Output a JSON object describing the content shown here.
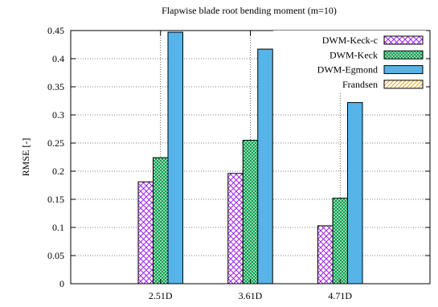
{
  "chart_data": {
    "type": "bar",
    "title": "Flapwise blade root bending moment (m=10)",
    "xlabel": "",
    "ylabel": "RMSE [-]",
    "ylim": [
      0,
      0.45
    ],
    "yticks": [
      0,
      0.05,
      0.1,
      0.15,
      0.2,
      0.25,
      0.3,
      0.35,
      0.4,
      0.45
    ],
    "ytick_labels": [
      "0",
      "0.05",
      "0.1",
      "0.15",
      "0.2",
      "0.25",
      "0.3",
      "0.35",
      "0.4",
      "0.45"
    ],
    "categories": [
      "2.51D",
      "3.61D",
      "4.71D"
    ],
    "grid": "dotted",
    "legend_position": "top-right",
    "series": [
      {
        "name": "DWM-Keck-c",
        "values": [
          0.181,
          0.196,
          0.103
        ],
        "color": "#a020f0",
        "pattern": "crosshatch"
      },
      {
        "name": "DWM-Keck",
        "values": [
          0.224,
          0.255,
          0.152
        ],
        "color": "#009e4a",
        "pattern": "dense-crosshatch"
      },
      {
        "name": "DWM-Egmond",
        "values": [
          0.447,
          0.417,
          0.322
        ],
        "color": "#56b4e9",
        "pattern": "solid"
      },
      {
        "name": "Frandsen",
        "values": [
          null,
          null,
          null
        ],
        "color": "#e6a817",
        "pattern": "diagonal"
      }
    ]
  }
}
